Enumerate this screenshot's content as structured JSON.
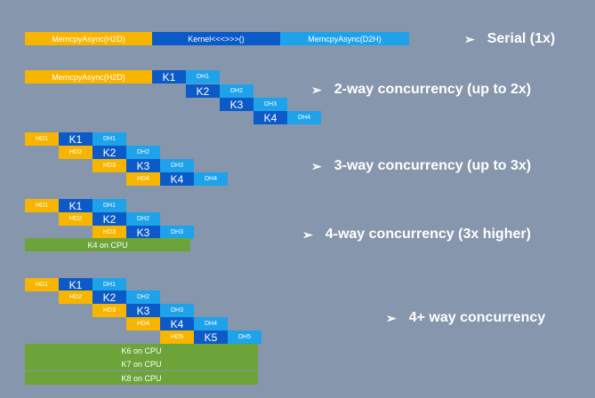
{
  "colors": {
    "background": "#8596ad",
    "host_to_device": "#f7b500",
    "kernel": "#0c5ac8",
    "device_to_host": "#1ea2ea",
    "cpu": "#6ca43a",
    "text": "#ffffff"
  },
  "arrow_glyph": "➢",
  "sections": [
    {
      "label": "Serial (1x)",
      "blocks": [
        {
          "text": "MemcpyAsync(H2D)",
          "kind": "h2d"
        },
        {
          "text": "Kernel<<<>>>()",
          "kind": "kernel"
        },
        {
          "text": "MemcpyAsync(D2H)",
          "kind": "d2h"
        }
      ]
    },
    {
      "label": "2-way concurrency  (up to 2x)",
      "blocks": [
        {
          "text": "MemcpyAsync(H2D)",
          "kind": "h2d"
        },
        {
          "text": "K1",
          "kind": "kernel"
        },
        {
          "text": "DH1",
          "kind": "d2h"
        },
        {
          "text": "K2",
          "kind": "kernel"
        },
        {
          "text": "DH2",
          "kind": "d2h"
        },
        {
          "text": "K3",
          "kind": "kernel"
        },
        {
          "text": "DH3",
          "kind": "d2h"
        },
        {
          "text": "K4",
          "kind": "kernel"
        },
        {
          "text": "DH4",
          "kind": "d2h"
        }
      ]
    },
    {
      "label": "3-way concurrency  (up to 3x)",
      "blocks": [
        {
          "text": "HD1",
          "kind": "h2d"
        },
        {
          "text": "K1",
          "kind": "kernel"
        },
        {
          "text": "DH1",
          "kind": "d2h"
        },
        {
          "text": "HD2",
          "kind": "h2d"
        },
        {
          "text": "K2",
          "kind": "kernel"
        },
        {
          "text": "DH2",
          "kind": "d2h"
        },
        {
          "text": "HD3",
          "kind": "h2d"
        },
        {
          "text": "K3",
          "kind": "kernel"
        },
        {
          "text": "DH3",
          "kind": "d2h"
        },
        {
          "text": "HD4",
          "kind": "h2d"
        },
        {
          "text": "K4",
          "kind": "kernel"
        },
        {
          "text": "DH4",
          "kind": "d2h"
        }
      ]
    },
    {
      "label": "4-way concurrency  (3x higher)",
      "blocks": [
        {
          "text": "HD1",
          "kind": "h2d"
        },
        {
          "text": "K1",
          "kind": "kernel"
        },
        {
          "text": "DH1",
          "kind": "d2h"
        },
        {
          "text": "HD2",
          "kind": "h2d"
        },
        {
          "text": "K2",
          "kind": "kernel"
        },
        {
          "text": "DH2",
          "kind": "d2h"
        },
        {
          "text": "HD3",
          "kind": "h2d"
        },
        {
          "text": "K3",
          "kind": "kernel"
        },
        {
          "text": "DH3",
          "kind": "d2h"
        },
        {
          "text": "K4 on CPU",
          "kind": "cpu"
        }
      ]
    },
    {
      "label": "4+ way concurrency",
      "blocks": [
        {
          "text": "HD1",
          "kind": "h2d"
        },
        {
          "text": "K1",
          "kind": "kernel"
        },
        {
          "text": "DH1",
          "kind": "d2h"
        },
        {
          "text": "HD2",
          "kind": "h2d"
        },
        {
          "text": "K2",
          "kind": "kernel"
        },
        {
          "text": "DH2",
          "kind": "d2h"
        },
        {
          "text": "HD3",
          "kind": "h2d"
        },
        {
          "text": "K3",
          "kind": "kernel"
        },
        {
          "text": "DH3",
          "kind": "d2h"
        },
        {
          "text": "HD4",
          "kind": "h2d"
        },
        {
          "text": "K4",
          "kind": "kernel"
        },
        {
          "text": "DH4",
          "kind": "d2h"
        },
        {
          "text": "HD5",
          "kind": "h2d"
        },
        {
          "text": "K5",
          "kind": "kernel"
        },
        {
          "text": "DH5",
          "kind": "d2h"
        },
        {
          "text": "K6 on CPU",
          "kind": "cpu"
        },
        {
          "text": "K7 on CPU",
          "kind": "cpu"
        },
        {
          "text": "K8 on CPU",
          "kind": "cpu"
        }
      ]
    }
  ]
}
